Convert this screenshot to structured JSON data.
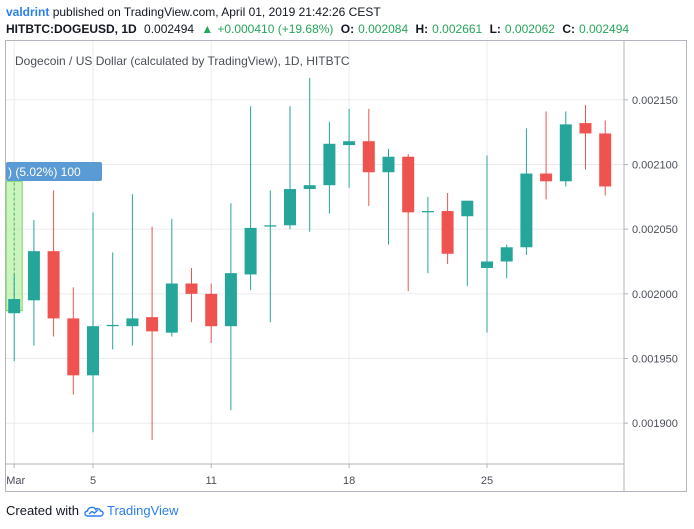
{
  "header": {
    "author": "valdrint",
    "published_text": "published on TradingView.com, April 01, 2019 21:42:26 CEST",
    "symbol": "HITBTC:DOGEUSD, 1D",
    "last": "0.002494",
    "change": "+0.000410 (+19.68%)",
    "ohlc": [
      {
        "label": "O:",
        "value": "0.002084"
      },
      {
        "label": "H:",
        "value": "0.002661"
      },
      {
        "label": "L:",
        "value": "0.002062"
      },
      {
        "label": "C:",
        "value": "0.002494"
      }
    ]
  },
  "chart_title": "Dogecoin / US Dollar (calculated by TradingView), 1D, HITBTC",
  "measure_label": ") (5.02%) 100",
  "footer": {
    "created_with": "Created with",
    "brand": "TradingView",
    "logo_icon": "tradingview-cloud-icon"
  },
  "colors": {
    "up": "#26a69a",
    "down": "#ef5350",
    "grid": "#e9ebef",
    "measure": "#5b9bd5"
  },
  "chart_data": {
    "type": "candlestick",
    "ylim": [
      0.00187,
      0.00218
    ],
    "y_ticks": [
      0.0019,
      0.00195,
      0.002,
      0.00205,
      0.0021,
      0.00215
    ],
    "y_tick_labels": [
      "0.001900",
      "0.001950",
      "0.002000",
      "0.002050",
      "0.002100",
      "0.002150"
    ],
    "x_ticks": [
      {
        "day": 1,
        "label": "Mar"
      },
      {
        "day": 5,
        "label": "5"
      },
      {
        "day": 11,
        "label": "11"
      },
      {
        "day": 18,
        "label": "18"
      },
      {
        "day": 25,
        "label": "25"
      }
    ],
    "candles": [
      {
        "day": 1,
        "o": 0.001985,
        "h": 0.002015,
        "l": 0.001948,
        "c": 0.001996
      },
      {
        "day": 2,
        "o": 0.001995,
        "h": 0.002057,
        "l": 0.00196,
        "c": 0.002033
      },
      {
        "day": 3,
        "o": 0.002033,
        "h": 0.00208,
        "l": 0.001967,
        "c": 0.001981
      },
      {
        "day": 4,
        "o": 0.001981,
        "h": 0.002005,
        "l": 0.001922,
        "c": 0.001937
      },
      {
        "day": 5,
        "o": 0.001937,
        "h": 0.002063,
        "l": 0.001893,
        "c": 0.001975
      },
      {
        "day": 6,
        "o": 0.001975,
        "h": 0.002032,
        "l": 0.001957,
        "c": 0.001976
      },
      {
        "day": 7,
        "o": 0.001975,
        "h": 0.002077,
        "l": 0.00196,
        "c": 0.001981
      },
      {
        "day": 8,
        "o": 0.001982,
        "h": 0.002052,
        "l": 0.001887,
        "c": 0.001971
      },
      {
        "day": 9,
        "o": 0.00197,
        "h": 0.002058,
        "l": 0.001967,
        "c": 0.002008
      },
      {
        "day": 10,
        "o": 0.002008,
        "h": 0.00202,
        "l": 0.001978,
        "c": 0.002
      },
      {
        "day": 11,
        "o": 0.002,
        "h": 0.002008,
        "l": 0.001962,
        "c": 0.001975
      },
      {
        "day": 12,
        "o": 0.001975,
        "h": 0.00207,
        "l": 0.00191,
        "c": 0.002016
      },
      {
        "day": 13,
        "o": 0.002015,
        "h": 0.002145,
        "l": 0.002003,
        "c": 0.002051
      },
      {
        "day": 14,
        "o": 0.002052,
        "h": 0.00208,
        "l": 0.001978,
        "c": 0.002053
      },
      {
        "day": 15,
        "o": 0.002053,
        "h": 0.002145,
        "l": 0.00205,
        "c": 0.002081
      },
      {
        "day": 16,
        "o": 0.002081,
        "h": 0.002167,
        "l": 0.002048,
        "c": 0.002084
      },
      {
        "day": 17,
        "o": 0.002084,
        "h": 0.002133,
        "l": 0.002062,
        "c": 0.002116
      },
      {
        "day": 18,
        "o": 0.002115,
        "h": 0.002143,
        "l": 0.002082,
        "c": 0.002118
      },
      {
        "day": 19,
        "o": 0.002118,
        "h": 0.002143,
        "l": 0.002068,
        "c": 0.002094
      },
      {
        "day": 20,
        "o": 0.002094,
        "h": 0.002112,
        "l": 0.002038,
        "c": 0.002106
      },
      {
        "day": 21,
        "o": 0.002106,
        "h": 0.002108,
        "l": 0.002002,
        "c": 0.002063
      },
      {
        "day": 22,
        "o": 0.002063,
        "h": 0.002075,
        "l": 0.002016,
        "c": 0.002064
      },
      {
        "day": 23,
        "o": 0.002064,
        "h": 0.002078,
        "l": 0.002023,
        "c": 0.002031
      },
      {
        "day": 24,
        "o": 0.00206,
        "h": 0.002072,
        "l": 0.002006,
        "c": 0.002072
      },
      {
        "day": 25,
        "o": 0.00202,
        "h": 0.002107,
        "l": 0.00197,
        "c": 0.002025
      },
      {
        "day": 26,
        "o": 0.002025,
        "h": 0.002038,
        "l": 0.002012,
        "c": 0.002036
      },
      {
        "day": 27,
        "o": 0.002036,
        "h": 0.002128,
        "l": 0.00203,
        "c": 0.002093
      },
      {
        "day": 28,
        "o": 0.002093,
        "h": 0.002141,
        "l": 0.002073,
        "c": 0.002087
      },
      {
        "day": 29,
        "o": 0.002087,
        "h": 0.002141,
        "l": 0.002083,
        "c": 0.002131
      },
      {
        "day": 30,
        "o": 0.002132,
        "h": 0.002146,
        "l": 0.002096,
        "c": 0.002124
      },
      {
        "day": 31,
        "o": 0.002124,
        "h": 0.002134,
        "l": 0.002076,
        "c": 0.002083
      }
    ],
    "measure": {
      "day": 1,
      "from": 0.001987,
      "to": 0.002087
    }
  }
}
